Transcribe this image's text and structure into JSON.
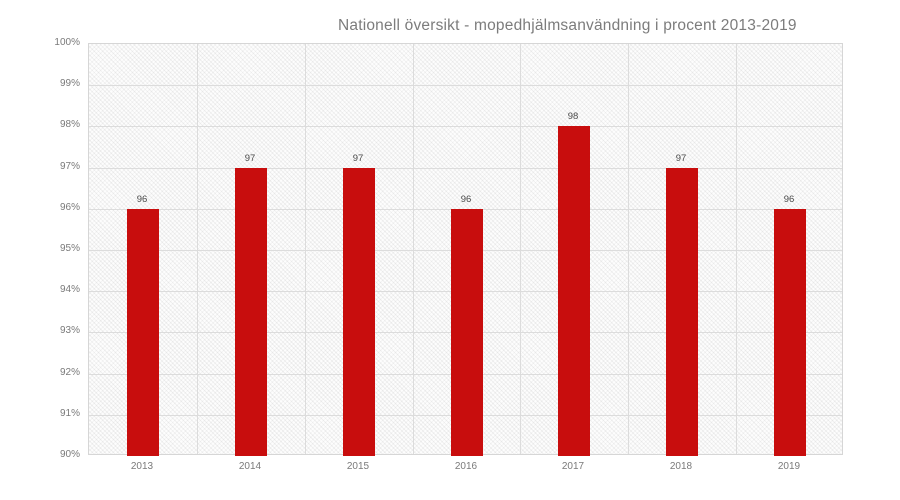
{
  "chart_data": {
    "type": "bar",
    "title": "Nationell översikt - mopedhjälmsanvändning i procent 2013-2019",
    "categories": [
      "2013",
      "2014",
      "2015",
      "2016",
      "2017",
      "2018",
      "2019"
    ],
    "values": [
      96,
      97,
      97,
      96,
      98,
      97,
      96
    ],
    "value_labels": [
      "96",
      "97",
      "97",
      "96",
      "98",
      "97",
      "96"
    ],
    "xlabel": "",
    "ylabel": "",
    "ylim": [
      90,
      100
    ],
    "ytick_step": 1,
    "ytick_labels": [
      "100%",
      "99%",
      "98%",
      "97%",
      "96%",
      "95%",
      "94%",
      "93%",
      "92%",
      "91%",
      "90%"
    ],
    "grid": true,
    "legend_position": "none",
    "colors": {
      "bar": "#c80d0d",
      "title_text": "#7c7c7c",
      "axis_text": "#7a7a7a",
      "value_text": "#4a4a4a",
      "gridline": "#dcdcdc",
      "plot_border": "#d6d6d6"
    }
  }
}
